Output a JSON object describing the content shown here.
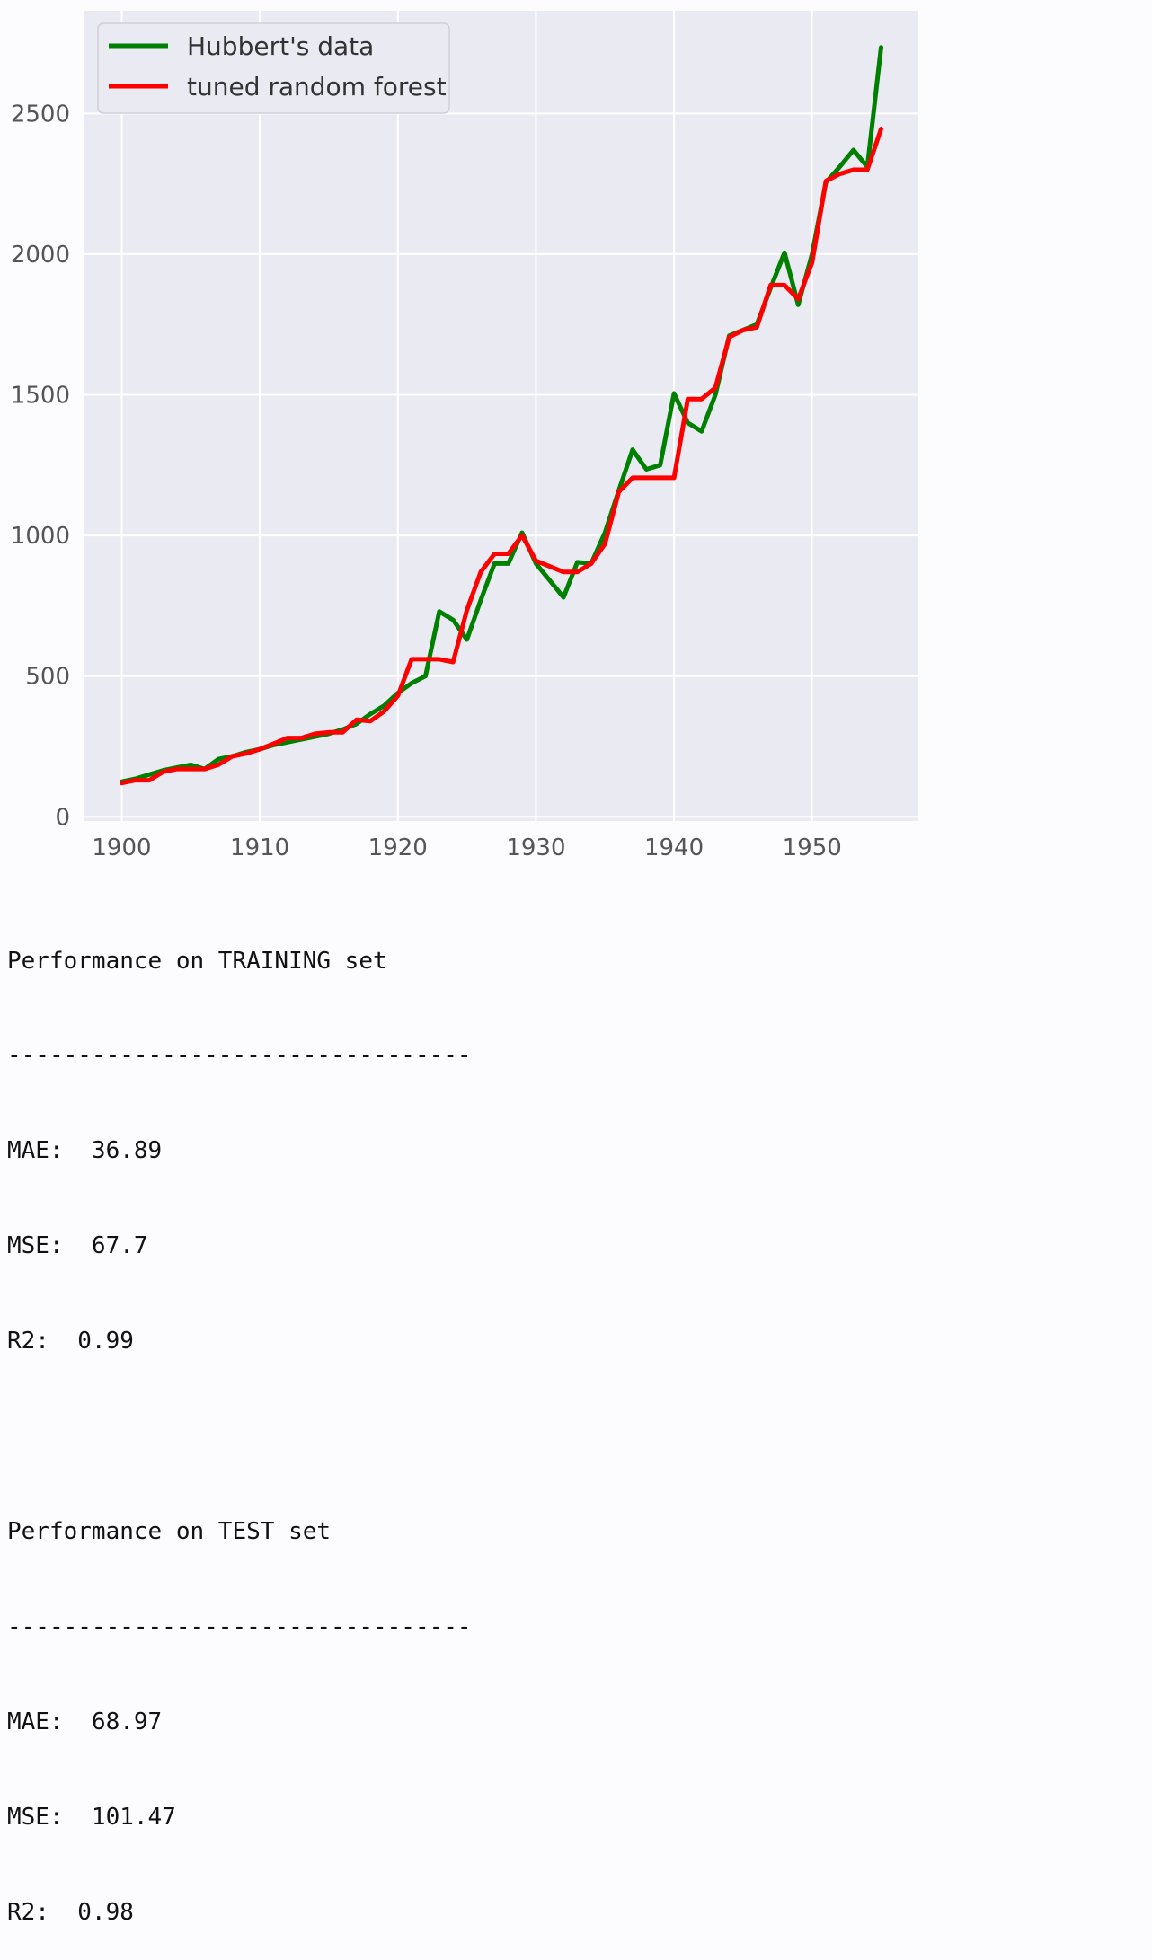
{
  "chart_data": {
    "type": "line",
    "title": "",
    "xlabel": "",
    "ylabel": "",
    "xlim": [
      1897.3,
      1957.7
    ],
    "ylim": [
      -15,
      2865
    ],
    "grid": true,
    "legend_position": "top-left",
    "x_ticks": [
      "1900",
      "1910",
      "1920",
      "1930",
      "1940",
      "1950"
    ],
    "x_tick_values": [
      1900,
      1910,
      1920,
      1930,
      1940,
      1950
    ],
    "y_ticks": [
      "0",
      "500",
      "1000",
      "1500",
      "2000",
      "2500"
    ],
    "y_tick_values": [
      0,
      500,
      1000,
      1500,
      2000,
      2500
    ],
    "x": [
      1900,
      1901,
      1902,
      1903,
      1904,
      1905,
      1906,
      1907,
      1908,
      1909,
      1910,
      1911,
      1912,
      1913,
      1914,
      1915,
      1916,
      1917,
      1918,
      1919,
      1920,
      1921,
      1922,
      1923,
      1924,
      1925,
      1926,
      1927,
      1928,
      1929,
      1930,
      1931,
      1932,
      1933,
      1934,
      1935,
      1936,
      1937,
      1938,
      1939,
      1940,
      1941,
      1942,
      1943,
      1944,
      1945,
      1946,
      1947,
      1948,
      1949,
      1950,
      1951,
      1952,
      1953,
      1954,
      1955
    ],
    "series": [
      {
        "name": "Hubbert's data",
        "color": "#008000",
        "values": [
          125,
          135,
          150,
          165,
          175,
          185,
          170,
          205,
          215,
          230,
          240,
          255,
          265,
          275,
          285,
          295,
          310,
          330,
          365,
          395,
          440,
          475,
          500,
          730,
          700,
          630,
          770,
          900,
          900,
          1010,
          900,
          840,
          780,
          905,
          900,
          1010,
          1160,
          1305,
          1235,
          1250,
          1505,
          1400,
          1370,
          1500,
          1710,
          1730,
          1750,
          1880,
          2005,
          1820,
          2000,
          2255,
          2310,
          2370,
          2310,
          2735
        ]
      },
      {
        "name": "tuned random forest",
        "color": "#ff0000",
        "values": [
          120,
          130,
          130,
          160,
          170,
          170,
          170,
          185,
          215,
          225,
          240,
          260,
          280,
          280,
          295,
          300,
          300,
          345,
          340,
          375,
          430,
          560,
          560,
          560,
          550,
          735,
          870,
          935,
          935,
          1000,
          910,
          890,
          870,
          870,
          900,
          970,
          1155,
          1205,
          1205,
          1205,
          1205,
          1485,
          1485,
          1525,
          1705,
          1730,
          1740,
          1890,
          1890,
          1840,
          1970,
          2260,
          2285,
          2300,
          2300,
          2445
        ]
      }
    ]
  },
  "output": {
    "training_title": "Performance on TRAINING set",
    "training_rule": "---------------------------------",
    "training_mae": "MAE:  36.89",
    "training_mse": "MSE:  67.7",
    "training_r2": "R2:  0.99",
    "test_title": "Performance on TEST set",
    "test_rule": "---------------------------------",
    "test_mae": "MAE:  68.97",
    "test_mse": "MSE:  101.47",
    "test_r2": "R2:  0.98"
  }
}
